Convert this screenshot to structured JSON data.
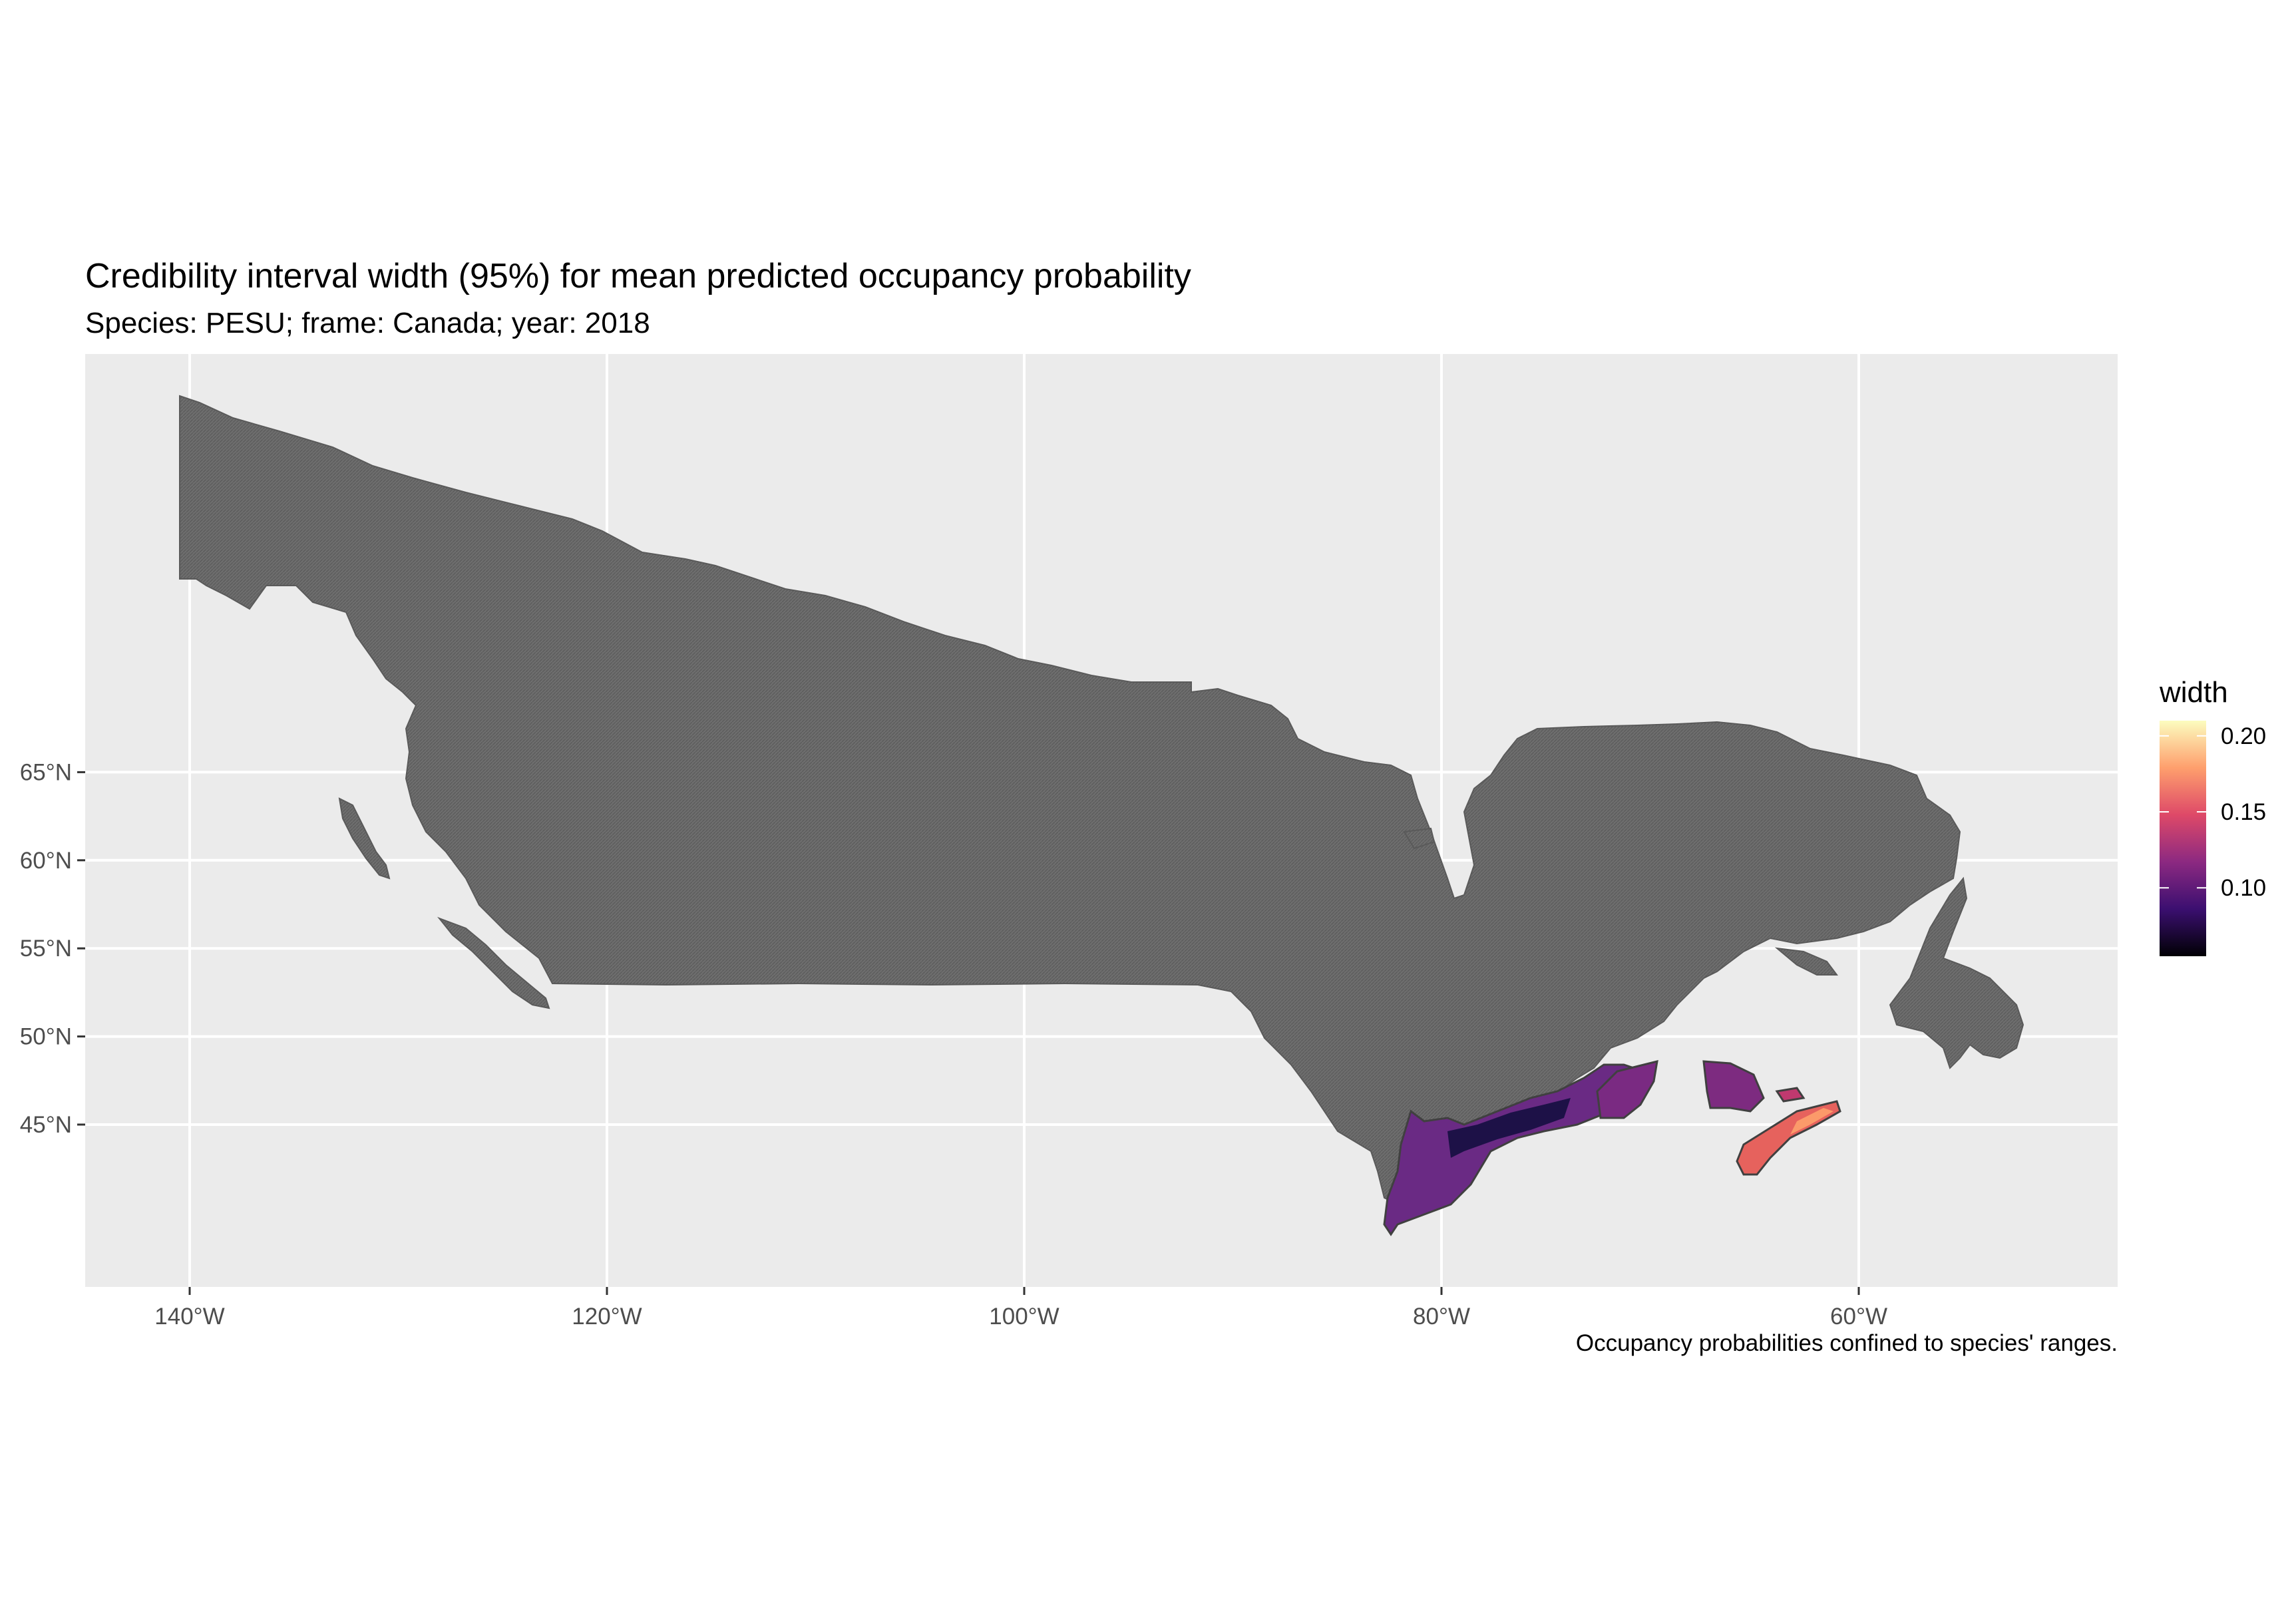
{
  "title": "Credibility interval width (95%) for mean predicted occupancy probability",
  "subtitle": "Species: PESU; frame: Canada; year: 2018",
  "caption": "Occupancy probabilities confined to species' ranges.",
  "axes": {
    "x_ticks": [
      {
        "value": -140,
        "label": "140°W"
      },
      {
        "value": -120,
        "label": "120°W"
      },
      {
        "value": -100,
        "label": "100°W"
      },
      {
        "value": -80,
        "label": "80°W"
      },
      {
        "value": -60,
        "label": "60°W"
      }
    ],
    "y_ticks": [
      {
        "value": 45,
        "label": "45°N"
      },
      {
        "value": 50,
        "label": "50°N"
      },
      {
        "value": 55,
        "label": "55°N"
      },
      {
        "value": 60,
        "label": "60°N"
      },
      {
        "value": 65,
        "label": "65°N"
      }
    ]
  },
  "legend": {
    "title": "width",
    "range": [
      0.055,
      0.21
    ],
    "breaks": [
      {
        "value": 0.1,
        "label": "0.10"
      },
      {
        "value": 0.15,
        "label": "0.15"
      },
      {
        "value": 0.2,
        "label": "0.20"
      }
    ],
    "palette": [
      "#000004",
      "#3b0f70",
      "#8c2981",
      "#de4968",
      "#fe9f6d",
      "#fcfdbf"
    ]
  },
  "colors": {
    "panel_background": "#ebebeb",
    "grid": "#ffffff",
    "frame_fill": "#6b6b6b",
    "frame_stroke": "#555555"
  }
}
